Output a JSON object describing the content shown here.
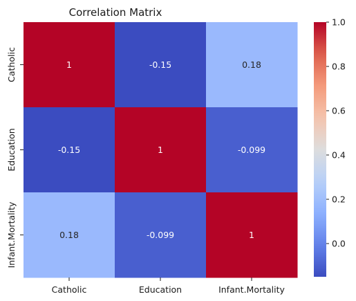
{
  "chart_data": {
    "type": "heatmap",
    "title": "Correlation Matrix",
    "rows": [
      "Catholic",
      "Education",
      "Infant.Mortality"
    ],
    "columns": [
      "Catholic",
      "Education",
      "Infant.Mortality"
    ],
    "values": [
      [
        1,
        -0.15,
        0.18
      ],
      [
        -0.15,
        1,
        -0.099
      ],
      [
        0.18,
        -0.099,
        1
      ]
    ],
    "cell_labels": [
      [
        "1",
        "-0.15",
        "0.18"
      ],
      [
        "-0.15",
        "1",
        "-0.099"
      ],
      [
        "0.18",
        "-0.099",
        "1"
      ]
    ],
    "colormap": "coolwarm",
    "color_range": [
      -0.15,
      1.0
    ],
    "colorbar_ticks": [
      {
        "value": 0.0,
        "label": "0.0"
      },
      {
        "value": 0.2,
        "label": "0.2"
      },
      {
        "value": 0.4,
        "label": "0.4"
      },
      {
        "value": 0.6,
        "label": "0.6"
      },
      {
        "value": 0.8,
        "label": "0.8"
      },
      {
        "value": 1.0,
        "label": "1.0"
      }
    ],
    "colorbar_placement": "right"
  }
}
